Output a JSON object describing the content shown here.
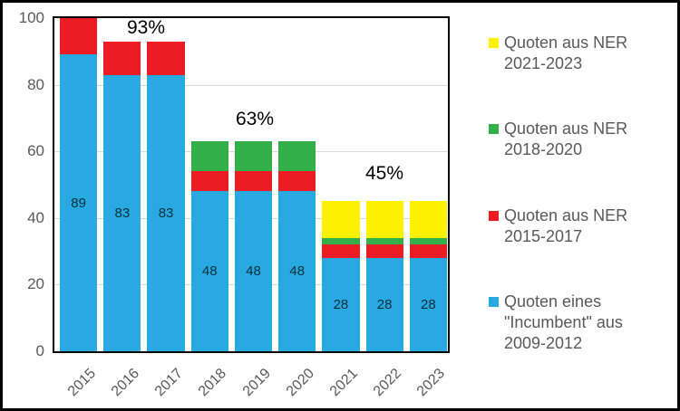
{
  "chart_data": {
    "type": "bar",
    "stacked": true,
    "categories": [
      "2015",
      "2016",
      "2017",
      "2018",
      "2019",
      "2020",
      "2021",
      "2022",
      "2023"
    ],
    "series": [
      {
        "name": "Quoten eines \"Incumbent\" aus 2009-2012",
        "color": "#29A9E1",
        "values": [
          89,
          83,
          83,
          48,
          48,
          48,
          28,
          28,
          28
        ],
        "show_labels": true
      },
      {
        "name": "Quoten aus NER 2015-2017",
        "color": "#EC1C24",
        "values": [
          11,
          10,
          10,
          6,
          6,
          6,
          4,
          4,
          4
        ],
        "show_labels": false
      },
      {
        "name": "Quoten aus NER 2018-2020",
        "color": "#33B04A",
        "values": [
          0,
          0,
          0,
          9,
          9,
          9,
          2,
          2,
          2
        ],
        "show_labels": false
      },
      {
        "name": "Quoten aus NER 2021-2023",
        "color": "#FFF200",
        "values": [
          0,
          0,
          0,
          0,
          0,
          0,
          11,
          11,
          11
        ],
        "show_labels": false
      }
    ],
    "ylim": [
      0,
      100
    ],
    "yticks": [
      0,
      20,
      40,
      60,
      80,
      100
    ],
    "grid": true,
    "annotations": [
      {
        "text": "93%",
        "x": 158,
        "y": 28
      },
      {
        "text": "63%",
        "x": 278,
        "y": 129
      },
      {
        "text": "45%",
        "x": 421,
        "y": 189
      }
    ],
    "legend_position": "right",
    "legend": [
      {
        "color": "#FFF200",
        "lines": [
          "Quoten aus NER",
          "2021-2023"
        ]
      },
      {
        "color": "#33B04A",
        "lines": [
          "Quoten aus NER",
          "2018-2020"
        ]
      },
      {
        "color": "#EC1C24",
        "lines": [
          "Quoten aus NER",
          "2015-2017"
        ]
      },
      {
        "color": "#29A9E1",
        "lines": [
          "Quoten eines",
          "\"Incumbent\" aus",
          "2009-2012"
        ]
      }
    ]
  }
}
